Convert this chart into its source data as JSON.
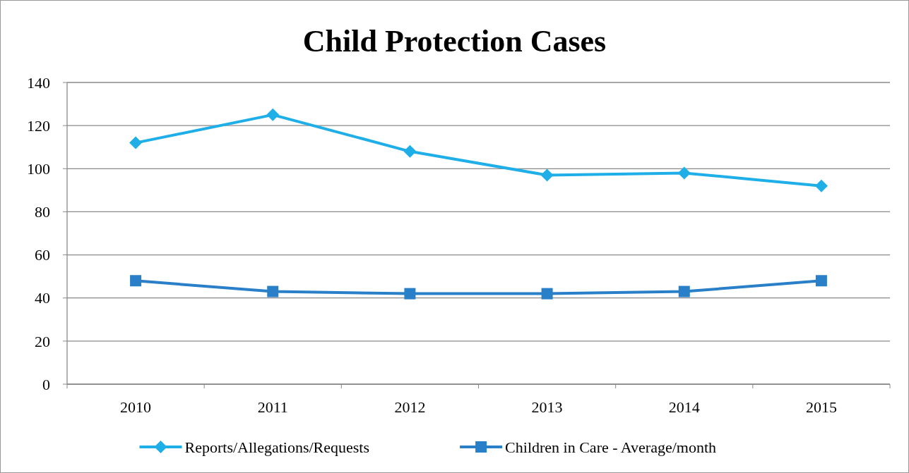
{
  "chart_data": {
    "type": "line",
    "title": "Child Protection Cases",
    "categories": [
      "2010",
      "2011",
      "2012",
      "2013",
      "2014",
      "2015"
    ],
    "series": [
      {
        "name": "Reports/Allegations/Requests",
        "color": "#1eaee8",
        "values": [
          112,
          125,
          108,
          97,
          98,
          92
        ],
        "marker": "diamond"
      },
      {
        "name": "Children in Care - Average/month",
        "color": "#2a7fc9",
        "values": [
          48,
          43,
          42,
          42,
          43,
          48
        ],
        "marker": "square"
      }
    ],
    "ylim": [
      0,
      140
    ],
    "yticks": [
      0,
      20,
      40,
      60,
      80,
      100,
      120,
      140
    ],
    "grid": "y",
    "legend": "bottom",
    "line_style": "solid"
  }
}
